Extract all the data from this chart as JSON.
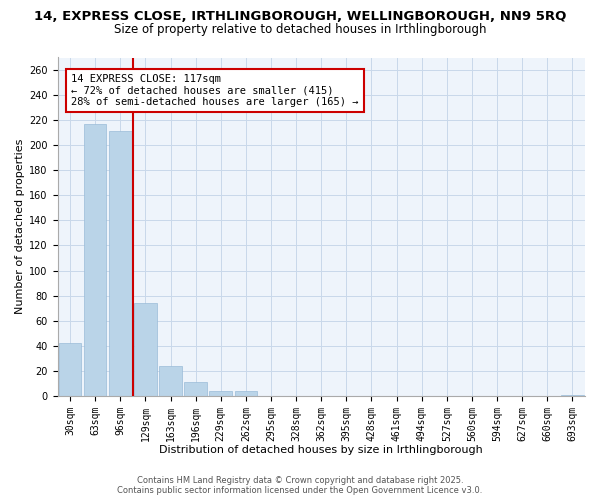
{
  "title": "14, EXPRESS CLOSE, IRTHLINGBOROUGH, WELLINGBOROUGH, NN9 5RQ",
  "subtitle": "Size of property relative to detached houses in Irthlingborough",
  "xlabel": "Distribution of detached houses by size in Irthlingborough",
  "ylabel": "Number of detached properties",
  "bar_color": "#bad4e8",
  "bar_edge_color": "#9abcd8",
  "vline_color": "#cc0000",
  "categories": [
    "30sqm",
    "63sqm",
    "96sqm",
    "129sqm",
    "163sqm",
    "196sqm",
    "229sqm",
    "262sqm",
    "295sqm",
    "328sqm",
    "362sqm",
    "395sqm",
    "428sqm",
    "461sqm",
    "494sqm",
    "527sqm",
    "560sqm",
    "594sqm",
    "627sqm",
    "660sqm",
    "693sqm"
  ],
  "values": [
    42,
    217,
    211,
    74,
    24,
    11,
    4,
    4,
    0,
    0,
    0,
    0,
    0,
    0,
    0,
    0,
    0,
    0,
    0,
    0,
    1
  ],
  "ylim": [
    0,
    270
  ],
  "yticks": [
    0,
    20,
    40,
    60,
    80,
    100,
    120,
    140,
    160,
    180,
    200,
    220,
    240,
    260
  ],
  "annotation_line1": "14 EXPRESS CLOSE: 117sqm",
  "annotation_line2": "← 72% of detached houses are smaller (415)",
  "annotation_line3": "28% of semi-detached houses are larger (165) →",
  "footer1": "Contains HM Land Registry data © Crown copyright and database right 2025.",
  "footer2": "Contains public sector information licensed under the Open Government Licence v3.0.",
  "bg_color": "#eef4fb",
  "grid_color": "#c8d8ea",
  "title_fontsize": 9.5,
  "subtitle_fontsize": 8.5,
  "axis_label_fontsize": 8,
  "tick_fontsize": 7,
  "annotation_fontsize": 7.5,
  "footer_fontsize": 6
}
